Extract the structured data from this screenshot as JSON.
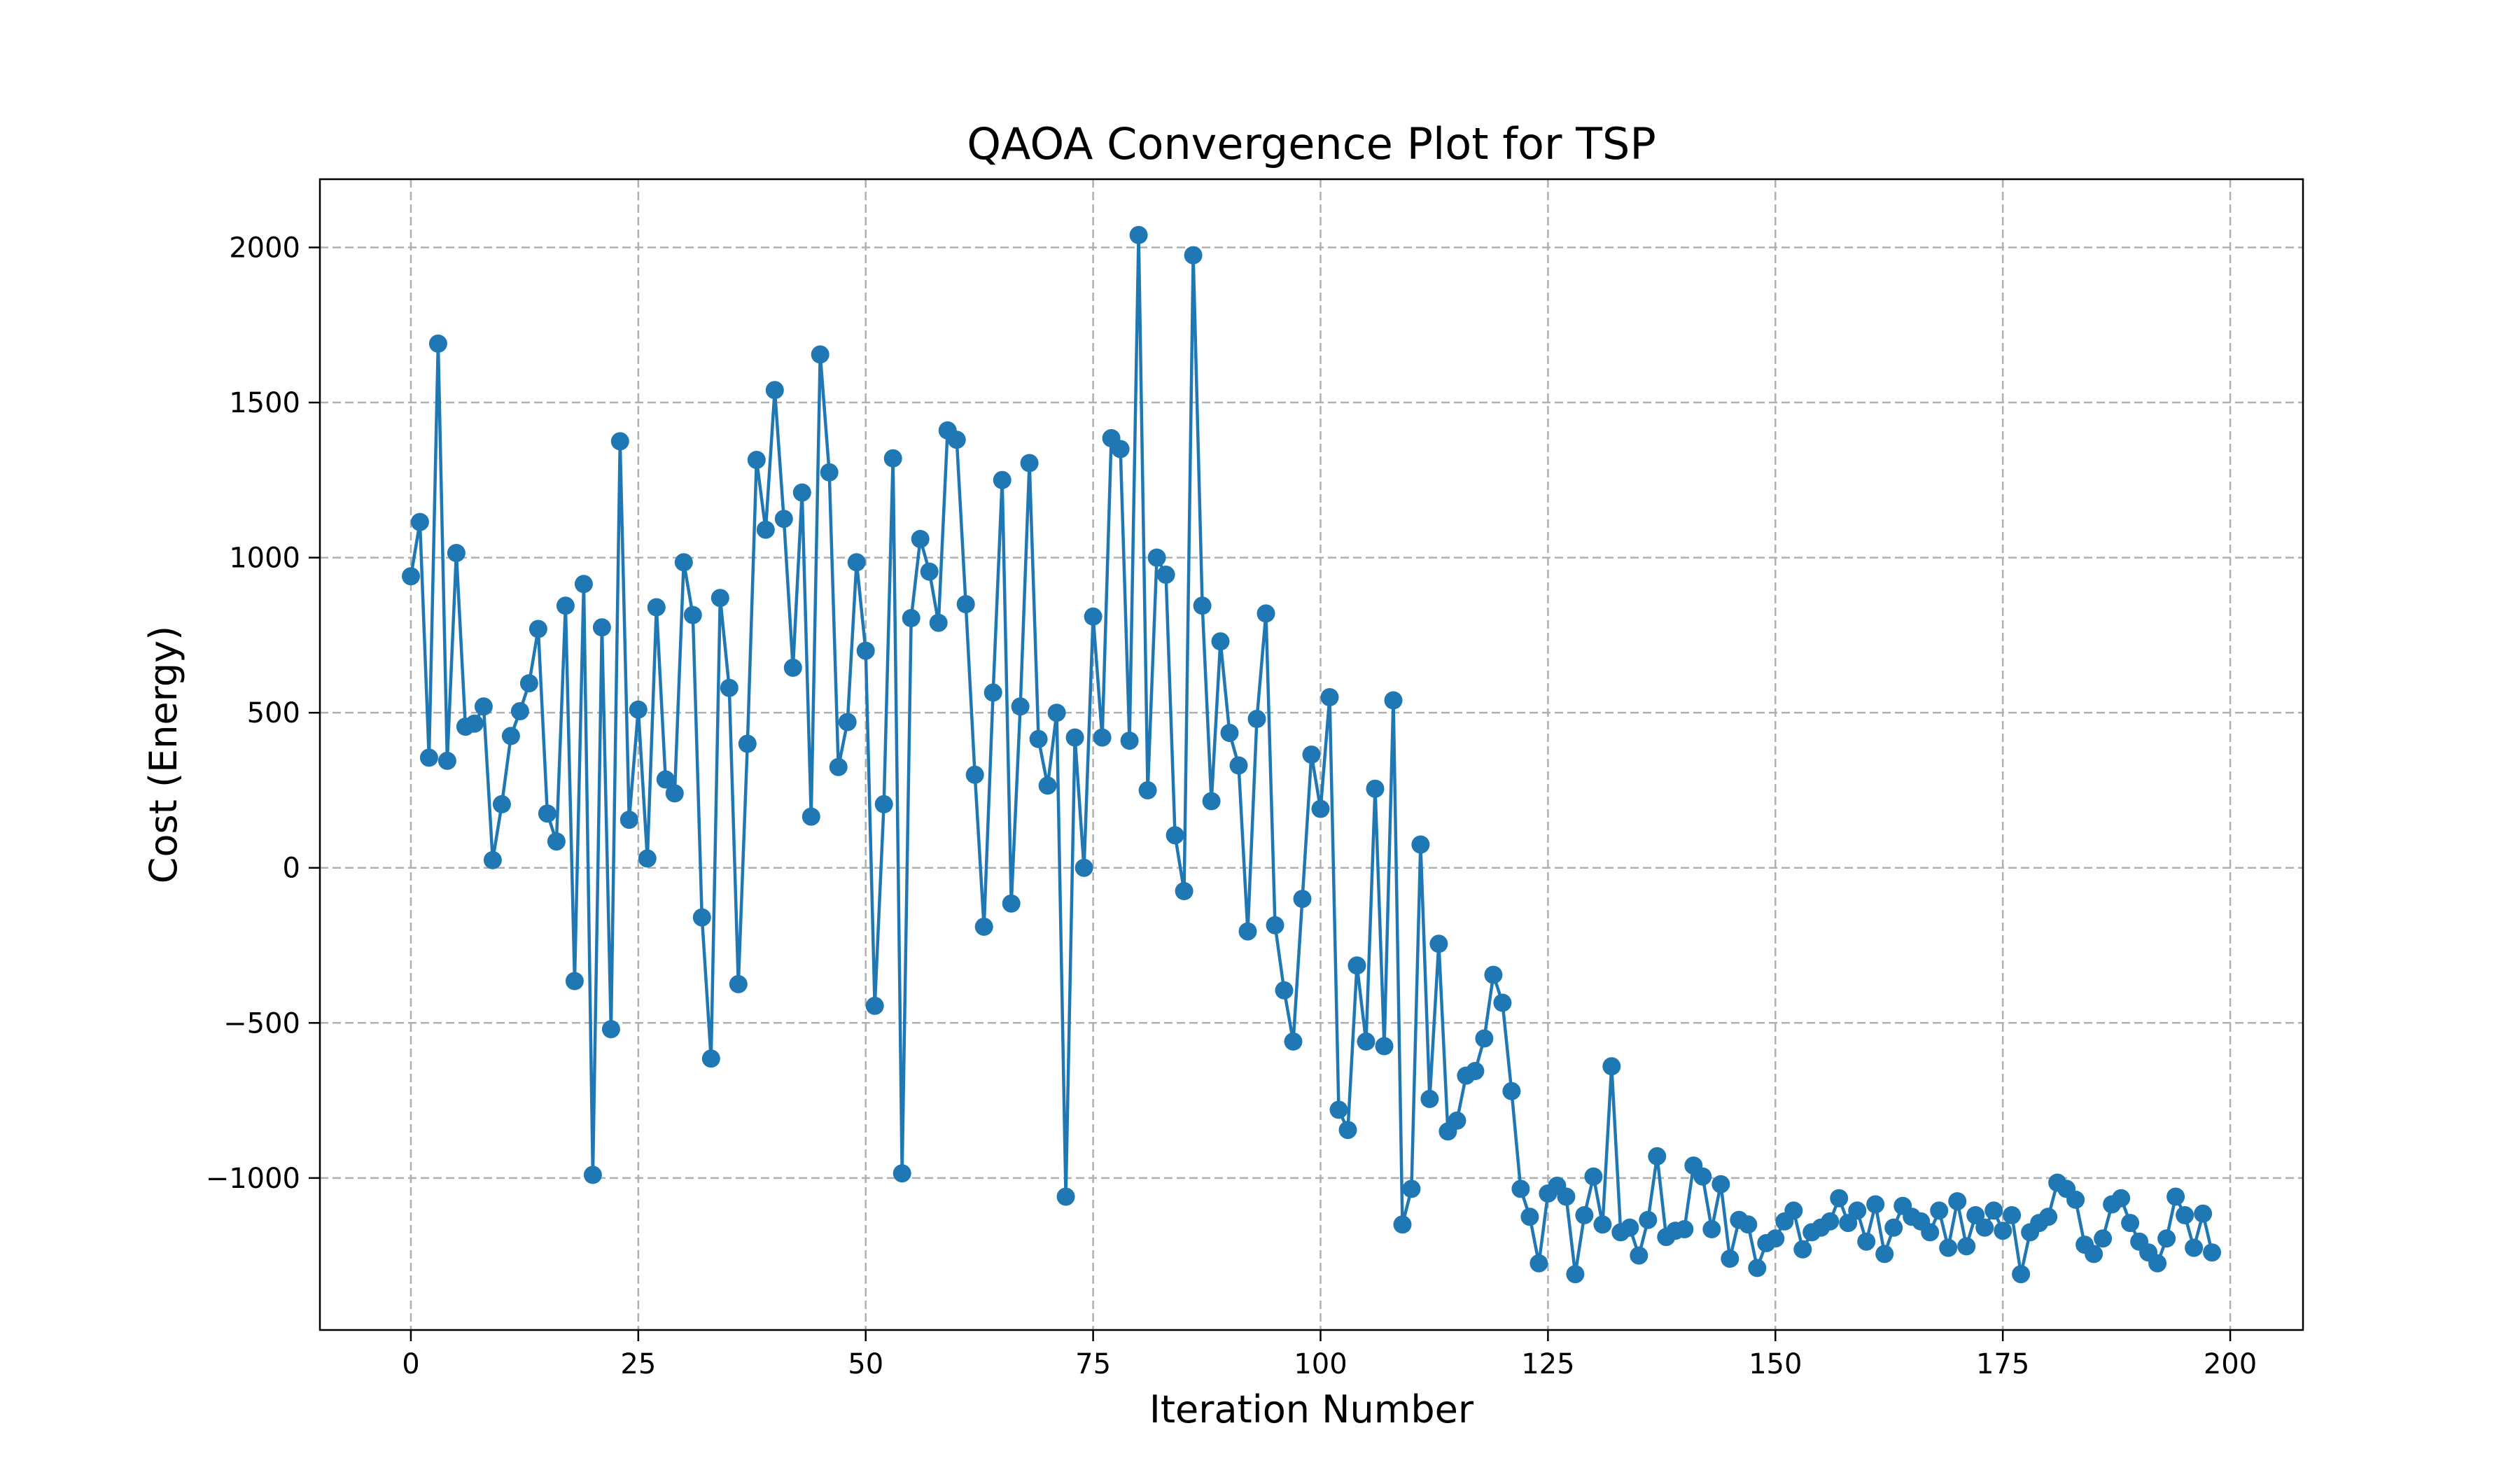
{
  "chart_data": {
    "type": "line",
    "title": "QAOA Convergence Plot for TSP",
    "xlabel": "Iteration Number",
    "ylabel": "Cost (Energy)",
    "xlim": [
      -10,
      208
    ],
    "ylim": [
      -1490,
      2220
    ],
    "xticks": [
      0,
      25,
      50,
      75,
      100,
      125,
      150,
      175,
      200
    ],
    "yticks": [
      -1000,
      -500,
      0,
      500,
      1000,
      1500,
      2000
    ],
    "xtick_labels": [
      "0",
      "25",
      "50",
      "75",
      "100",
      "125",
      "150",
      "175",
      "200"
    ],
    "ytick_labels": [
      "−1000",
      "−500",
      "0",
      "500",
      "1000",
      "1500",
      "2000"
    ],
    "grid": true,
    "marker": "circle",
    "color": "#1f77b4",
    "series": [
      {
        "x": [
          0,
          1,
          2,
          3,
          4,
          5,
          6,
          7,
          8,
          9,
          10,
          11,
          12,
          13,
          14,
          15,
          16,
          17,
          18,
          19,
          20,
          21,
          22,
          23,
          24,
          25,
          26,
          27,
          28,
          29,
          30,
          31,
          32,
          33,
          34,
          35,
          36,
          37,
          38,
          39,
          40,
          41,
          42,
          43,
          44,
          45,
          46,
          47,
          48,
          49,
          50,
          51,
          52,
          53,
          54,
          55,
          56,
          57,
          58,
          59,
          60,
          61,
          62,
          63,
          64,
          65,
          66,
          67,
          68,
          69,
          70,
          71,
          72,
          73,
          74,
          75,
          76,
          77,
          78,
          79,
          80,
          81,
          82,
          83,
          84,
          85,
          86,
          87,
          88,
          89,
          90,
          91,
          92,
          93,
          94,
          95,
          96,
          97,
          98,
          99,
          100,
          101,
          102,
          103,
          104,
          105,
          106,
          107,
          108,
          109,
          110,
          111,
          112,
          113,
          114,
          115,
          116,
          117,
          118,
          119,
          120,
          121,
          122,
          123,
          124,
          125,
          126,
          127,
          128,
          129,
          130,
          131,
          132,
          133,
          134,
          135,
          136,
          137,
          138,
          139,
          140,
          141,
          142,
          143,
          144,
          145,
          146,
          147,
          148,
          149,
          150,
          151,
          152,
          153,
          154,
          155,
          156,
          157,
          158,
          159,
          160,
          161,
          162,
          163,
          164,
          165,
          166,
          167,
          168,
          169,
          170,
          171,
          172,
          173,
          174,
          175,
          176,
          177,
          178,
          179,
          180,
          181,
          182,
          183,
          184,
          185,
          186,
          187,
          188,
          189,
          190,
          191,
          192,
          193,
          194,
          195,
          196,
          197,
          198
        ],
        "values": [
          940,
          1115,
          355,
          1690,
          345,
          1015,
          455,
          465,
          520,
          25,
          205,
          425,
          505,
          595,
          770,
          175,
          85,
          845,
          -365,
          915,
          -990,
          775,
          -520,
          1375,
          155,
          510,
          30,
          840,
          285,
          240,
          985,
          815,
          -160,
          -615,
          870,
          580,
          -375,
          400,
          1315,
          1090,
          1540,
          1125,
          645,
          1210,
          165,
          1655,
          1275,
          325,
          470,
          985,
          700,
          -445,
          205,
          1320,
          -985,
          805,
          1060,
          955,
          790,
          1410,
          1380,
          850,
          300,
          -190,
          565,
          1250,
          -115,
          520,
          1305,
          415,
          265,
          500,
          -1060,
          420,
          0,
          810,
          420,
          1385,
          1350,
          410,
          2040,
          250,
          1000,
          945,
          105,
          -75,
          1975,
          845,
          215,
          730,
          435,
          330,
          -205,
          480,
          820,
          -185,
          -395,
          -560,
          -100,
          365,
          190,
          550,
          -780,
          -845,
          -315,
          -560,
          255,
          -575,
          540,
          -1150,
          -1035,
          75,
          -745,
          -245,
          -850,
          -815,
          -670,
          -655,
          -550,
          -345,
          -435,
          -720,
          -1035,
          -1125,
          -1275,
          -1050,
          -1025,
          -1060,
          -1310,
          -1120,
          -995,
          -1150,
          -640,
          -1175,
          -1160,
          -1250,
          -1135,
          -930,
          -1190,
          -1170,
          -1165,
          -960,
          -995,
          -1165,
          -1020,
          -1260,
          -1135,
          -1150,
          -1290,
          -1210,
          -1195,
          -1140,
          -1105,
          -1230,
          -1175,
          -1160,
          -1140,
          -1065,
          -1145,
          -1105,
          -1205,
          -1085,
          -1245,
          -1160,
          -1090,
          -1125,
          -1140,
          -1175,
          -1105,
          -1225,
          -1075,
          -1220,
          -1120,
          -1160,
          -1105,
          -1170,
          -1120,
          -1310,
          -1175,
          -1145,
          -1125,
          -1015,
          -1035,
          -1070,
          -1215,
          -1245,
          -1195,
          -1085,
          -1065,
          -1145,
          -1205,
          -1240,
          -1275,
          -1195,
          -1060,
          -1120,
          -1225,
          -1115,
          -1240
        ]
      }
    ]
  }
}
